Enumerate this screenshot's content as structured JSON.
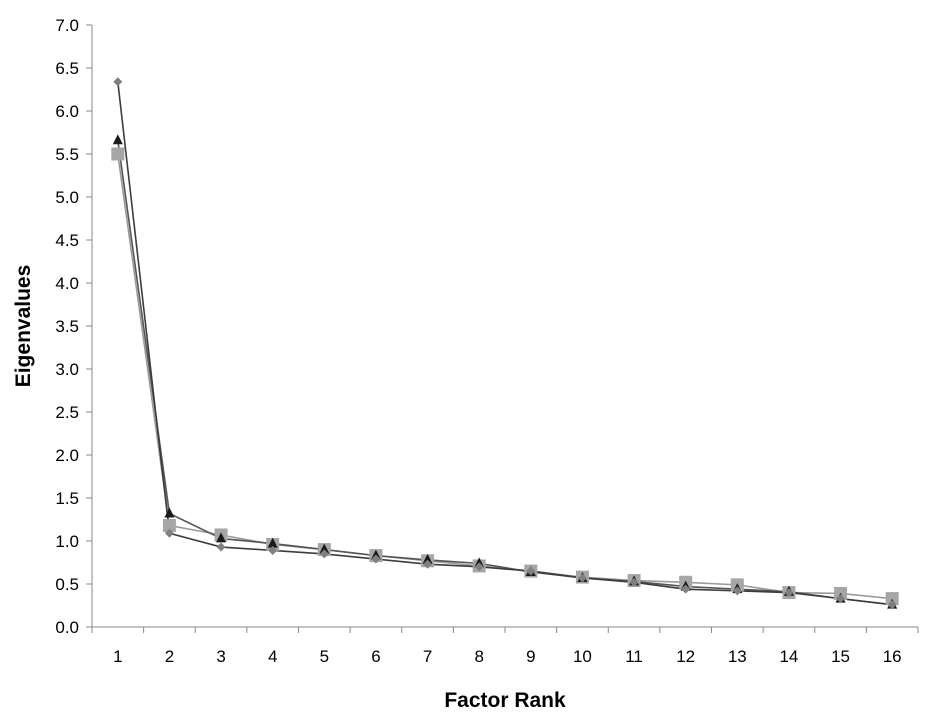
{
  "chart_data": {
    "type": "line",
    "xlabel": "Factor Rank",
    "ylabel": "Eigenvalues",
    "x": [
      1,
      2,
      3,
      4,
      5,
      6,
      7,
      8,
      9,
      10,
      11,
      12,
      13,
      14,
      15,
      16
    ],
    "x_tick_labels": [
      "1",
      "2",
      "3",
      "4",
      "5",
      "6",
      "7",
      "8",
      "9",
      "10",
      "11",
      "12",
      "13",
      "14",
      "15",
      "16"
    ],
    "ylim": [
      0,
      7
    ],
    "y_ticks": [
      0,
      0.5,
      1,
      1.5,
      2,
      2.5,
      3,
      3.5,
      4,
      4.5,
      5,
      5.5,
      6,
      6.5,
      7
    ],
    "y_tick_labels": [
      "0.0",
      "0.5",
      "1.0",
      "1.5",
      "2.0",
      "2.5",
      "3.0",
      "3.5",
      "4.0",
      "4.5",
      "5.0",
      "5.5",
      "6.0",
      "6.5",
      "7.0"
    ],
    "grid": false,
    "legend": "none",
    "series": [
      {
        "marker": "diamond",
        "color": "#808080",
        "line_color": "#3c3c3c",
        "values": [
          6.34,
          1.09,
          0.93,
          0.89,
          0.85,
          0.79,
          0.73,
          0.7,
          0.65,
          0.57,
          0.52,
          0.44,
          0.42,
          0.4,
          0.33,
          0.26
        ]
      },
      {
        "marker": "triangle",
        "color": "#1a1a1a",
        "line_color": "#555555",
        "values": [
          5.66,
          1.32,
          1.03,
          0.97,
          0.9,
          0.83,
          0.78,
          0.74,
          0.64,
          0.57,
          0.53,
          0.47,
          0.44,
          0.41,
          0.33,
          0.26
        ]
      },
      {
        "marker": "square",
        "color": "#a6a6a6",
        "line_color": "#9a9a9a",
        "values": [
          5.5,
          1.18,
          1.07,
          0.96,
          0.9,
          0.83,
          0.77,
          0.71,
          0.65,
          0.58,
          0.54,
          0.52,
          0.49,
          0.4,
          0.39,
          0.33
        ]
      }
    ]
  }
}
